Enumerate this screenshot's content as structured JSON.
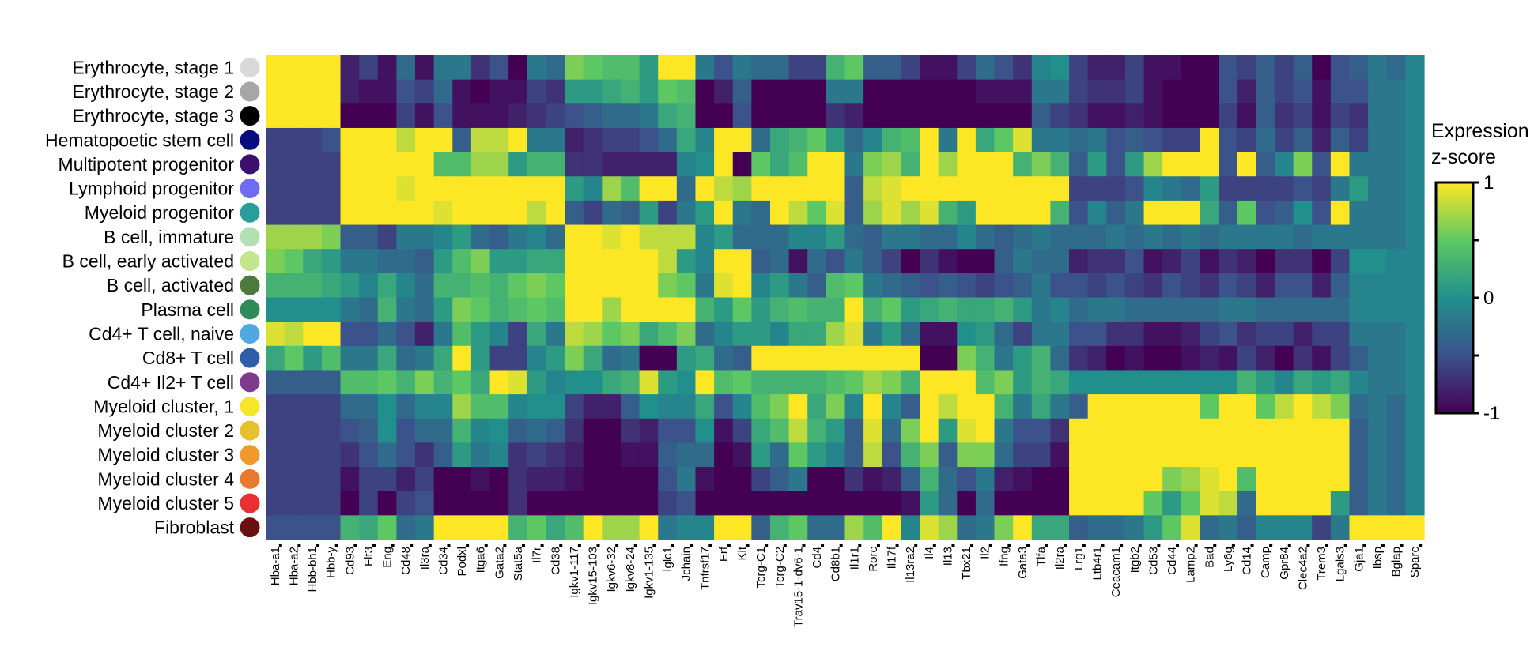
{
  "chart_data": {
    "type": "heatmap",
    "title": "",
    "xlabel": "",
    "ylabel": "",
    "rows": [
      {
        "label": "Erythrocyte, stage 1",
        "color": "#d9d9d9"
      },
      {
        "label": "Erythrocyte, stage 2",
        "color": "#a6a6a6"
      },
      {
        "label": "Erythrocyte, stage 3",
        "color": "#000000"
      },
      {
        "label": "Hematopoetic stem cell",
        "color": "#0a0a80"
      },
      {
        "label": "Multipotent progenitor",
        "color": "#3c0f6e"
      },
      {
        "label": "Lymphoid progenitor",
        "color": "#6e6cf5"
      },
      {
        "label": "Myeloid progenitor",
        "color": "#2a9d9b"
      },
      {
        "label": "B cell, immature",
        "color": "#b2e0b2"
      },
      {
        "label": "B cell, early activated",
        "color": "#c3e68c"
      },
      {
        "label": "B cell, activated",
        "color": "#4d7a3c"
      },
      {
        "label": "Plasma cell",
        "color": "#2e8b57"
      },
      {
        "label": "Cd4+ T cell, naive",
        "color": "#4fa8e0"
      },
      {
        "label": "Cd8+ T cell",
        "color": "#2f5ea8"
      },
      {
        "label": "Cd4+ Il2+ T cell",
        "color": "#7f3a8f"
      },
      {
        "label": "Myeloid cluster, 1",
        "color": "#f5e62a"
      },
      {
        "label": "Myeloid cluster 2",
        "color": "#e8c02e"
      },
      {
        "label": "Myeloid cluster 3",
        "color": "#f09a2e"
      },
      {
        "label": "Myeloid cluster 4",
        "color": "#e87a30"
      },
      {
        "label": "Myeloid cluster 5",
        "color": "#e83030"
      },
      {
        "label": "Fibroblast",
        "color": "#6b0f0f"
      }
    ],
    "columns": [
      "Hba-a1",
      "Hba-a2",
      "Hbb-bh1",
      "Hbb-y",
      "Cd93",
      "Flt3",
      "Eng",
      "Cd48",
      "Il3ra",
      "Cd34",
      "Podxl",
      "Itga6",
      "Gata2",
      "Stat5a",
      "Il7r",
      "Cd38",
      "Igkv1-117",
      "Igkv15-103",
      "Igkv6-32",
      "Igkv8-24",
      "Igkv1-135",
      "Iglc1",
      "Jchain",
      "Tnfrsf17",
      "Erf",
      "Kit",
      "Tcrg-C1",
      "Tcrg-C2",
      "Trav15-1-dv6-1",
      "Cd4",
      "Cd8b1",
      "Il1r1",
      "Rorc",
      "Il17f",
      "Il13ra2",
      "Il4",
      "Il13",
      "Tbx21",
      "Il2",
      "Ifng",
      "Gata3",
      "Tlfa",
      "Il2ra",
      "Lrg1",
      "Ltb4r1",
      "Ceacam1",
      "Itgb2",
      "Cd53",
      "Cd44",
      "Lamp2",
      "Bad",
      "Ly6g",
      "Cd14",
      "Camp",
      "Gpr84",
      "Clec4a2",
      "Trem3",
      "Lgals3",
      "Gja1",
      "Ibsp",
      "Bglap",
      "Sparc"
    ],
    "values": [
      [
        1,
        1,
        1,
        1,
        -0.8,
        -0.6,
        -0.9,
        -0.3,
        -0.9,
        -0.2,
        -0.2,
        -0.7,
        -0.5,
        -1,
        -0.2,
        -0.3,
        0.6,
        0.5,
        0.4,
        0.4,
        0.1,
        1,
        1,
        -0.2,
        -0.5,
        -0.2,
        -0.3,
        -0.3,
        -0.6,
        -0.6,
        0.3,
        0.5,
        -0.4,
        -0.4,
        -0.6,
        -0.9,
        -0.9,
        -0.6,
        -0.3,
        -0.5,
        -0.7,
        -0.1,
        0,
        -0.6,
        -0.8,
        -0.8,
        -0.6,
        -0.9,
        -0.9,
        -1,
        -1,
        -0.5,
        -0.6,
        -0.4,
        -0.6,
        -0.4,
        -1,
        -0.5,
        -0.4,
        -0.2,
        -0.3,
        -0.1
      ],
      [
        1,
        1,
        1,
        1,
        -0.8,
        -0.9,
        -0.9,
        -0.5,
        -0.6,
        -0.3,
        -0.9,
        -1,
        -0.9,
        -0.9,
        -0.6,
        -0.7,
        0.1,
        0.1,
        0.2,
        0.3,
        0.1,
        0.5,
        0.4,
        -1,
        -0.8,
        -0.4,
        -1,
        -1,
        -1,
        -1,
        -0.2,
        -0.2,
        -1,
        -1,
        -1,
        -1,
        -1,
        -1,
        -0.9,
        -0.9,
        -0.9,
        -0.2,
        -0.2,
        -0.6,
        -0.7,
        -0.7,
        -0.6,
        -0.9,
        -1,
        -1,
        -1,
        -0.5,
        -0.8,
        -0.4,
        -0.6,
        -0.5,
        -0.9,
        -0.5,
        -0.5,
        -0.2,
        -0.2,
        -0.1
      ],
      [
        1,
        1,
        1,
        1,
        -1,
        -1,
        -1,
        -0.6,
        -0.9,
        -0.5,
        -0.9,
        -0.9,
        -0.9,
        -0.8,
        -0.7,
        -0.6,
        -0.5,
        -0.4,
        -0.3,
        -0.3,
        -0.2,
        0.2,
        0.3,
        -1,
        -1,
        -0.5,
        -1,
        -1,
        -1,
        -1,
        -0.7,
        -0.8,
        -1,
        -1,
        -1,
        -1,
        -1,
        -1,
        -1,
        -1,
        -1,
        -0.4,
        -0.6,
        -0.7,
        -0.9,
        -0.9,
        -0.8,
        -0.9,
        -1,
        -1,
        -1,
        -0.6,
        -0.9,
        -0.4,
        -0.7,
        -0.6,
        -0.9,
        -0.6,
        -0.7,
        -0.2,
        -0.2,
        -0.1
      ],
      [
        -0.6,
        -0.6,
        -0.6,
        -0.5,
        1,
        1,
        1,
        0.8,
        1,
        1,
        -0.4,
        0.8,
        0.8,
        1,
        -0.2,
        -0.2,
        -0.8,
        -0.7,
        -0.6,
        -0.6,
        -0.5,
        -0.3,
        0.2,
        -0.1,
        1,
        1,
        -0.3,
        0.2,
        0.3,
        0.5,
        0.1,
        -0.3,
        -0.1,
        0.3,
        0.4,
        1,
        -0.2,
        1,
        0.2,
        0.5,
        0.9,
        -0.2,
        -0.2,
        -0.3,
        -0.2,
        -0.5,
        -0.4,
        -0.5,
        -0.6,
        -0.6,
        1,
        -0.5,
        -0.6,
        -0.3,
        -0.6,
        -0.4,
        -0.8,
        -0.4,
        -0.6,
        -0.2,
        -0.2,
        -0.1
      ],
      [
        -0.6,
        -0.6,
        -0.6,
        -0.6,
        1,
        1,
        1,
        1,
        1,
        0.4,
        0.4,
        0.7,
        0.7,
        0.1,
        0.3,
        0.3,
        -0.7,
        -0.7,
        -0.8,
        -0.8,
        -0.8,
        -0.8,
        -0.1,
        0,
        1,
        -1,
        0.5,
        0.2,
        0.4,
        1,
        1,
        -0.2,
        0.6,
        0.7,
        0.3,
        1,
        0.7,
        1,
        1,
        1,
        0.3,
        0.6,
        0.3,
        -0.4,
        0.1,
        -0.5,
        0.1,
        0.7,
        1,
        1,
        1,
        -0.5,
        1,
        -0.4,
        -0.1,
        0.6,
        -0.5,
        1,
        -0.2,
        -0.2,
        -0.2,
        -0.1
      ],
      [
        -0.6,
        -0.6,
        -0.6,
        -0.6,
        1,
        1,
        1,
        0.9,
        1,
        1,
        1,
        1,
        1,
        1,
        1,
        1,
        0.1,
        -0.1,
        0.7,
        0.4,
        1,
        1,
        -0.3,
        1,
        0.8,
        0.7,
        1,
        1,
        1,
        1,
        1,
        -0.4,
        0.8,
        0.9,
        1,
        1,
        1,
        1,
        1,
        1,
        1,
        1,
        1,
        -0.6,
        -0.6,
        -0.6,
        -0.5,
        -0.1,
        -0.2,
        -0.3,
        0.1,
        -0.6,
        -0.6,
        -0.6,
        -0.6,
        -0.5,
        -0.6,
        -0.2,
        0.1,
        -0.2,
        -0.2,
        -0.1
      ],
      [
        -0.6,
        -0.6,
        -0.6,
        -0.6,
        1,
        1,
        1,
        1,
        1,
        0.9,
        1,
        1,
        1,
        1,
        0.8,
        1,
        -0.4,
        -0.6,
        -0.3,
        -0.4,
        0.1,
        -0.6,
        -0.2,
        0.1,
        1,
        -0.2,
        -0.3,
        1,
        0.8,
        0.5,
        0.9,
        -0.4,
        0.7,
        0.9,
        0.7,
        0.9,
        0.3,
        0.1,
        1,
        1,
        1,
        1,
        0.3,
        -0.5,
        -0.1,
        -0.4,
        -0.2,
        1,
        1,
        1,
        0.2,
        -0.4,
        0.5,
        -0.5,
        -0.4,
        0,
        -0.5,
        1,
        -0.2,
        -0.2,
        -0.2,
        -0.1
      ],
      [
        0.7,
        0.7,
        0.7,
        0.6,
        -0.4,
        -0.4,
        -0.6,
        -0.2,
        -0.2,
        -0.1,
        0.1,
        -0.3,
        -0.4,
        -0.2,
        -0.1,
        -0.3,
        1,
        1,
        0.9,
        1,
        0.8,
        0.8,
        0.8,
        -0.1,
        0.1,
        -0.3,
        -0.3,
        -0.3,
        -0.1,
        -0.1,
        0.1,
        -0.3,
        -0.4,
        -0.2,
        -0.2,
        -0.3,
        -0.3,
        -0.1,
        -0.3,
        -0.4,
        -0.3,
        -0.2,
        -0.3,
        -0.3,
        -0.3,
        -0.2,
        -0.3,
        -0.2,
        -0.3,
        -0.2,
        -0.3,
        -0.2,
        -0.2,
        -0.2,
        -0.2,
        -0.3,
        -0.2,
        -0.2,
        -0.2,
        -0.2,
        -0.2,
        -0.1
      ],
      [
        0.6,
        0.5,
        0.2,
        0.1,
        -0.2,
        -0.2,
        -0.3,
        -0.3,
        -0.4,
        0.1,
        0.4,
        0.6,
        0.1,
        0.1,
        0.2,
        0.2,
        1,
        1,
        1,
        1,
        1,
        0.8,
        0.1,
        -0.1,
        1,
        1,
        -0.4,
        -0.3,
        -0.9,
        -0.3,
        -0.5,
        -0.2,
        -0.4,
        -0.6,
        -1,
        -0.7,
        -0.9,
        -1,
        -1,
        -0.4,
        -0.2,
        -0.3,
        -0.3,
        -0.8,
        -0.7,
        -0.7,
        -0.5,
        -0.9,
        -0.8,
        -0.6,
        -0.9,
        -0.7,
        -0.8,
        -1,
        -0.7,
        -0.7,
        -1,
        -0.6,
        0,
        0,
        -0.1,
        -0.1
      ],
      [
        0.3,
        0.3,
        0.3,
        0.2,
        0.1,
        -0.1,
        0.2,
        -0.1,
        -0.3,
        0.3,
        0.3,
        0.4,
        0.3,
        0.5,
        0.6,
        0.5,
        1,
        1,
        1,
        1,
        1,
        0.6,
        0.5,
        -0.2,
        0.9,
        1,
        -0.1,
        0.1,
        -0.2,
        -0.4,
        0.4,
        0.5,
        -0.2,
        -0.3,
        -0.4,
        -0.5,
        -0.4,
        -0.5,
        -0.6,
        -0.5,
        -0.4,
        -0.2,
        -0.5,
        -0.5,
        -0.6,
        -0.5,
        -0.6,
        -0.7,
        -0.5,
        -0.6,
        -0.7,
        -0.5,
        -0.6,
        -0.8,
        -0.5,
        -0.5,
        -0.8,
        -0.4,
        -0.1,
        -0.1,
        -0.1,
        -0.1
      ],
      [
        0,
        0,
        0,
        0,
        -0.2,
        -0.3,
        0.3,
        -0.2,
        -0.3,
        0.1,
        0.6,
        0.5,
        0.3,
        0.4,
        0.5,
        0.4,
        1,
        1,
        0.7,
        1,
        1,
        1,
        1,
        0.3,
        0.1,
        0.5,
        0.1,
        0.3,
        0.4,
        0.3,
        0.3,
        1,
        0.3,
        0.5,
        0.1,
        0.2,
        0.3,
        0.2,
        0.2,
        0.3,
        0.1,
        -0.2,
        -0.1,
        -0.3,
        -0.2,
        -0.2,
        -0.3,
        -0.3,
        -0.3,
        -0.3,
        -0.3,
        -0.2,
        -0.2,
        -0.3,
        -0.3,
        -0.3,
        -0.3,
        -0.3,
        -0.1,
        -0.1,
        -0.1,
        -0.1
      ],
      [
        0.9,
        0.8,
        1,
        1,
        -0.5,
        -0.5,
        -0.3,
        -0.5,
        -0.8,
        -0.2,
        0.4,
        0.1,
        -0.1,
        -0.6,
        0.2,
        -0.2,
        0.8,
        0.7,
        0.5,
        0.6,
        0.2,
        0.4,
        0.6,
        -0.3,
        -0.1,
        0.1,
        0.1,
        -0.1,
        0.2,
        0.2,
        0.7,
        0.9,
        -0.2,
        0.1,
        -0.3,
        -0.9,
        -0.9,
        0,
        0.1,
        -0.3,
        -0.6,
        -0.2,
        -0.2,
        -0.5,
        -0.5,
        -0.7,
        -0.7,
        -0.9,
        -0.9,
        -0.8,
        -0.6,
        -0.5,
        -0.7,
        -0.6,
        -0.6,
        -0.8,
        -0.6,
        -0.6,
        -0.2,
        -0.2,
        -0.2,
        -0.1
      ],
      [
        0.2,
        0.5,
        0.1,
        0.4,
        -0.2,
        -0.2,
        0.2,
        -0.3,
        -0.2,
        0.2,
        1,
        0.1,
        -0.6,
        -0.6,
        -0.1,
        0.1,
        0.6,
        0.2,
        -0.3,
        -0.2,
        -1,
        -1,
        0.1,
        0.2,
        -0.3,
        -0.4,
        1,
        1,
        1,
        1,
        1,
        1,
        1,
        1,
        1,
        -1,
        -1,
        0.6,
        0.3,
        -0.2,
        0.1,
        0.3,
        -0.3,
        -0.7,
        -0.8,
        -1,
        -0.9,
        -1,
        -1,
        -0.9,
        -0.8,
        -0.9,
        -0.6,
        -0.8,
        -1,
        -0.7,
        -0.9,
        -0.6,
        -0.4,
        -0.2,
        -0.2,
        -0.1
      ],
      [
        -0.4,
        -0.4,
        -0.4,
        -0.4,
        0.4,
        0.4,
        0.5,
        0.3,
        0.6,
        0.3,
        0.5,
        0.2,
        1,
        0.9,
        0.1,
        -0.1,
        0,
        0,
        0.2,
        0.3,
        0.9,
        0.1,
        0,
        1,
        0.4,
        0.5,
        0.3,
        0.3,
        0.3,
        0.3,
        0.4,
        0.5,
        0.7,
        0.6,
        0.3,
        1,
        1,
        1,
        0.4,
        0.6,
        0.1,
        0.3,
        0.2,
        0,
        0,
        0,
        0,
        0,
        0,
        0,
        0,
        0,
        0.3,
        0.1,
        -0.1,
        0.2,
        0.1,
        0.2,
        -0.1,
        -0.2,
        -0.2,
        -0.1
      ],
      [
        -0.6,
        -0.6,
        -0.6,
        -0.6,
        -0.3,
        -0.3,
        0,
        -0.3,
        -0.1,
        -0.1,
        0.7,
        0.4,
        0.4,
        -0.1,
        0,
        0,
        -0.6,
        -0.8,
        -0.8,
        -0.4,
        0,
        -0.1,
        -0.1,
        0.2,
        -0.5,
        -0.1,
        0.4,
        0.6,
        1,
        0.2,
        0.6,
        -0.1,
        1,
        -0.1,
        -0.4,
        1,
        0.8,
        1,
        1,
        0.3,
        -0.2,
        0.2,
        -0.2,
        -0.4,
        1,
        1,
        1,
        1,
        1,
        1,
        0.5,
        1,
        1,
        0.5,
        0.8,
        1,
        0.8,
        0.6,
        -0.3,
        -0.2,
        -0.3,
        -0.1
      ],
      [
        -0.6,
        -0.6,
        -0.6,
        -0.6,
        -0.5,
        -0.4,
        0,
        -0.5,
        -0.3,
        -0.3,
        0.3,
        -0.1,
        0,
        -0.4,
        -0.3,
        -0.4,
        -0.7,
        -1,
        -1,
        -0.7,
        -0.8,
        -0.5,
        -0.5,
        0,
        -0.9,
        -0.6,
        0.2,
        0.4,
        0.8,
        0.3,
        0.1,
        -0.4,
        0.9,
        -0.3,
        0.6,
        1,
        0.1,
        0.9,
        1,
        -0.2,
        -0.5,
        -0.5,
        -0.7,
        1,
        1,
        1,
        1,
        1,
        1,
        1,
        1,
        1,
        1,
        1,
        1,
        1,
        1,
        1,
        -0.4,
        -0.2,
        -0.3,
        -0.1
      ],
      [
        -0.6,
        -0.6,
        -0.6,
        -0.6,
        -0.7,
        -0.5,
        -0.3,
        -0.5,
        -0.7,
        -0.4,
        0.1,
        -0.2,
        -0.1,
        -0.7,
        -0.6,
        -0.7,
        -0.8,
        -1,
        -1,
        -0.9,
        -0.9,
        -0.4,
        -0.3,
        -0.3,
        -1,
        -0.9,
        0.1,
        -0.3,
        0.5,
        0.1,
        -0.1,
        -0.4,
        0.8,
        -0.5,
        0.3,
        0.6,
        -0.4,
        0.6,
        0.6,
        -0.3,
        -0.6,
        -0.6,
        -0.9,
        1,
        1,
        1,
        1,
        1,
        1,
        1,
        1,
        1,
        1,
        1,
        1,
        1,
        1,
        1,
        -0.4,
        -0.2,
        -0.3,
        -0.1
      ],
      [
        -0.6,
        -0.6,
        -0.6,
        -0.6,
        -0.9,
        -0.6,
        -0.6,
        -0.8,
        -0.6,
        -1,
        -1,
        -0.9,
        -1,
        -0.7,
        -0.8,
        -0.8,
        -0.9,
        -1,
        -1,
        -1,
        -1,
        -0.5,
        -0.2,
        -0.9,
        -1,
        -1,
        -0.6,
        -0.4,
        -0.2,
        -1,
        -1,
        -0.7,
        -0.9,
        -0.8,
        -0.4,
        0.3,
        -0.3,
        -0.5,
        -0.2,
        -0.8,
        -0.9,
        -1,
        -1,
        1,
        1,
        1,
        1,
        1,
        0.6,
        0.7,
        0.9,
        1,
        0.4,
        1,
        1,
        1,
        1,
        1,
        -0.4,
        -0.2,
        -0.3,
        -0.1
      ],
      [
        -0.6,
        -0.6,
        -0.6,
        -0.6,
        -1,
        -0.6,
        -1,
        -0.6,
        -0.5,
        -1,
        -1,
        -1,
        -1,
        -0.7,
        -1,
        -1,
        -1,
        -1,
        -1,
        -1,
        -1,
        -0.6,
        -0.5,
        -1,
        -1,
        -1,
        -1,
        -1,
        -1,
        -1,
        -1,
        -1,
        -1,
        -1,
        -0.9,
        0.1,
        -0.3,
        -1,
        -0.3,
        -1,
        -1,
        -1,
        -1,
        1,
        1,
        1,
        1,
        0.5,
        0.1,
        0.5,
        0.9,
        0.8,
        -0.3,
        1,
        1,
        1,
        1,
        0.1,
        -0.4,
        -0.2,
        -0.3,
        -0.1
      ],
      [
        -0.5,
        -0.5,
        -0.5,
        -0.5,
        0.3,
        0.2,
        0.5,
        -0.3,
        -0.2,
        1,
        1,
        1,
        1,
        0.3,
        0.5,
        0.2,
        0.4,
        1,
        0.7,
        0.7,
        1,
        -0.2,
        -0.1,
        -0.1,
        1,
        1,
        -0.4,
        0.3,
        0.5,
        -0.3,
        -0.3,
        0.7,
        0.4,
        1,
        -0.1,
        0.9,
        0.7,
        -0.3,
        -0.2,
        0.6,
        1,
        0.2,
        0.2,
        -0.4,
        -0.3,
        -0.3,
        -0.2,
        0.1,
        0.5,
        0.9,
        -0.3,
        -0.2,
        -0.4,
        -0.1,
        -0.1,
        -0.1,
        -0.6,
        -0.2,
        1,
        1,
        1,
        1
      ]
    ],
    "colorbar": {
      "title_lines": [
        "Expression",
        "z-score"
      ],
      "range": [
        -1,
        1
      ],
      "tick_labels": [
        "1",
        "0",
        "-1"
      ],
      "stops": [
        "#440154",
        "#3b528b",
        "#21908c",
        "#5dc863",
        "#fde725"
      ]
    }
  }
}
